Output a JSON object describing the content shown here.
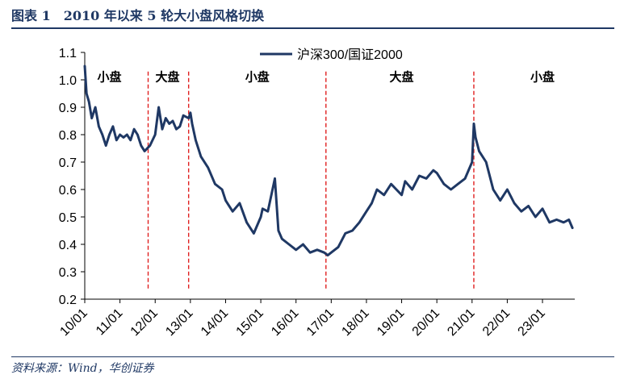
{
  "header": {
    "title": "图表 1　2010 年以来 5 轮大小盘风格切换"
  },
  "footer": {
    "source": "资料来源：Wind，华创证券"
  },
  "colors": {
    "line": "#1f3864",
    "divider": "#e02020",
    "title": "#1f3864"
  },
  "chart_data": {
    "type": "line",
    "title": "",
    "xlabel": "",
    "ylabel": "",
    "ylim": [
      0.2,
      1.1
    ],
    "yticks": [
      "0.2",
      "0.3",
      "0.4",
      "0.5",
      "0.6",
      "0.7",
      "0.8",
      "0.9",
      "1.0",
      "1.1"
    ],
    "xticks": [
      "10/01",
      "11/01",
      "12/01",
      "13/01",
      "14/01",
      "15/01",
      "16/01",
      "17/01",
      "18/01",
      "19/01",
      "20/01",
      "21/01",
      "22/01",
      "23/01"
    ],
    "grid": false,
    "legend": {
      "position": "top-center",
      "entries": [
        "沪深300/国证2000"
      ]
    },
    "series": [
      {
        "name": "沪深300/国证2000",
        "x": [
          2010.0,
          2010.05,
          2010.12,
          2010.2,
          2010.3,
          2010.4,
          2010.5,
          2010.6,
          2010.7,
          2010.8,
          2010.9,
          2011.0,
          2011.1,
          2011.2,
          2011.3,
          2011.4,
          2011.5,
          2011.6,
          2011.7,
          2011.85,
          2012.0,
          2012.1,
          2012.2,
          2012.3,
          2012.4,
          2012.5,
          2012.6,
          2012.7,
          2012.8,
          2012.95,
          2013.0,
          2013.05,
          2013.15,
          2013.3,
          2013.5,
          2013.7,
          2013.9,
          2014.0,
          2014.2,
          2014.4,
          2014.6,
          2014.8,
          2015.0,
          2015.05,
          2015.2,
          2015.4,
          2015.5,
          2015.6,
          2015.8,
          2016.0,
          2016.2,
          2016.4,
          2016.6,
          2016.8,
          2016.9,
          2017.0,
          2017.2,
          2017.4,
          2017.6,
          2017.8,
          2018.0,
          2018.15,
          2018.3,
          2018.5,
          2018.7,
          2018.85,
          2019.0,
          2019.1,
          2019.3,
          2019.5,
          2019.7,
          2019.9,
          2020.0,
          2020.2,
          2020.4,
          2020.6,
          2020.8,
          2021.0,
          2021.05,
          2021.1,
          2021.2,
          2021.4,
          2021.6,
          2021.8,
          2022.0,
          2022.2,
          2022.4,
          2022.6,
          2022.8,
          2023.0,
          2023.2,
          2023.4,
          2023.6,
          2023.75,
          2023.85
        ],
        "y": [
          1.05,
          0.95,
          0.92,
          0.86,
          0.9,
          0.83,
          0.8,
          0.76,
          0.8,
          0.83,
          0.78,
          0.8,
          0.79,
          0.8,
          0.78,
          0.82,
          0.8,
          0.76,
          0.74,
          0.76,
          0.8,
          0.9,
          0.82,
          0.86,
          0.84,
          0.85,
          0.82,
          0.83,
          0.87,
          0.86,
          0.88,
          0.84,
          0.78,
          0.72,
          0.68,
          0.62,
          0.6,
          0.56,
          0.52,
          0.55,
          0.48,
          0.44,
          0.5,
          0.53,
          0.52,
          0.64,
          0.45,
          0.42,
          0.4,
          0.38,
          0.4,
          0.37,
          0.38,
          0.37,
          0.36,
          0.37,
          0.39,
          0.44,
          0.45,
          0.48,
          0.52,
          0.55,
          0.6,
          0.58,
          0.62,
          0.6,
          0.58,
          0.63,
          0.6,
          0.65,
          0.64,
          0.67,
          0.66,
          0.62,
          0.6,
          0.62,
          0.64,
          0.7,
          0.84,
          0.79,
          0.74,
          0.7,
          0.6,
          0.56,
          0.6,
          0.55,
          0.52,
          0.54,
          0.5,
          0.53,
          0.48,
          0.49,
          0.48,
          0.49,
          0.46
        ]
      }
    ],
    "dividers": [
      2011.8,
      2012.95,
      2016.85,
      2021.05
    ],
    "regions": [
      {
        "label": "小盘",
        "x": 2010.7
      },
      {
        "label": "大盘",
        "x": 2012.35
      },
      {
        "label": "小盘",
        "x": 2014.9
      },
      {
        "label": "大盘",
        "x": 2019.0
      },
      {
        "label": "小盘",
        "x": 2023.0
      }
    ]
  }
}
